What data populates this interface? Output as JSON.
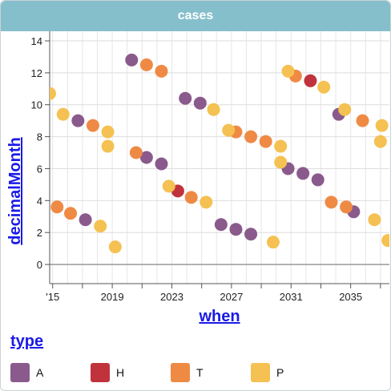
{
  "header": {
    "title": "cases"
  },
  "legend": {
    "title": "type",
    "items": [
      {
        "label": "A",
        "color": "#8a5a8c"
      },
      {
        "label": "H",
        "color": "#c0333d"
      },
      {
        "label": "T",
        "color": "#ef8a45"
      },
      {
        "label": "P",
        "color": "#f4c152"
      }
    ]
  },
  "chart_data": {
    "type": "scatter",
    "title": "cases",
    "xlabel": "when",
    "ylabel": "decimalMonth",
    "xlim": [
      2014.8,
      2037.6
    ],
    "ylim": [
      -1.2,
      14.6
    ],
    "xticks": [
      "'15",
      "2019",
      "2023",
      "2027",
      "2031",
      "2035"
    ],
    "xtick_values": [
      2015,
      2019,
      2023,
      2027,
      2031,
      2035
    ],
    "yticks": [
      0,
      2,
      4,
      6,
      8,
      10,
      12,
      14
    ],
    "grid": true,
    "legend_position": "bottom",
    "series": [
      {
        "name": "A",
        "color": "#8a5a8c",
        "points": [
          [
            2016.7,
            9.0
          ],
          [
            2017.2,
            2.8
          ],
          [
            2020.3,
            12.8
          ],
          [
            2021.3,
            6.7
          ],
          [
            2022.3,
            6.3
          ],
          [
            2023.9,
            10.4
          ],
          [
            2024.9,
            10.1
          ],
          [
            2026.3,
            2.5
          ],
          [
            2027.3,
            2.2
          ],
          [
            2028.3,
            1.9
          ],
          [
            2030.8,
            6.0
          ],
          [
            2031.8,
            5.7
          ],
          [
            2032.8,
            5.3
          ],
          [
            2034.2,
            9.4
          ],
          [
            2035.2,
            3.3
          ]
        ]
      },
      {
        "name": "H",
        "color": "#c0333d",
        "points": [
          [
            2023.4,
            4.6
          ],
          [
            2032.3,
            11.5
          ]
        ]
      },
      {
        "name": "T",
        "color": "#ef8a45",
        "points": [
          [
            2015.3,
            3.6
          ],
          [
            2016.2,
            3.2
          ],
          [
            2017.7,
            8.7
          ],
          [
            2020.6,
            7.0
          ],
          [
            2021.3,
            12.5
          ],
          [
            2022.3,
            12.1
          ],
          [
            2024.3,
            4.2
          ],
          [
            2027.3,
            8.3
          ],
          [
            2028.3,
            8.0
          ],
          [
            2029.3,
            7.7
          ],
          [
            2031.3,
            11.8
          ],
          [
            2033.7,
            3.9
          ],
          [
            2034.7,
            3.6
          ],
          [
            2035.8,
            9.0
          ]
        ]
      },
      {
        "name": "P",
        "color": "#f4c152",
        "points": [
          [
            2014.8,
            10.7
          ],
          [
            2015.7,
            9.4
          ],
          [
            2018.2,
            2.4
          ],
          [
            2018.7,
            8.3
          ],
          [
            2018.7,
            7.4
          ],
          [
            2019.2,
            1.1
          ],
          [
            2022.8,
            4.9
          ],
          [
            2025.3,
            3.9
          ],
          [
            2025.8,
            9.7
          ],
          [
            2026.8,
            8.4
          ],
          [
            2029.8,
            1.4
          ],
          [
            2030.3,
            7.4
          ],
          [
            2030.3,
            6.4
          ],
          [
            2030.8,
            12.1
          ],
          [
            2033.2,
            11.1
          ],
          [
            2034.6,
            9.7
          ],
          [
            2036.6,
            2.8
          ],
          [
            2037.0,
            7.7
          ],
          [
            2037.1,
            8.7
          ],
          [
            2037.5,
            1.5
          ]
        ]
      }
    ]
  }
}
